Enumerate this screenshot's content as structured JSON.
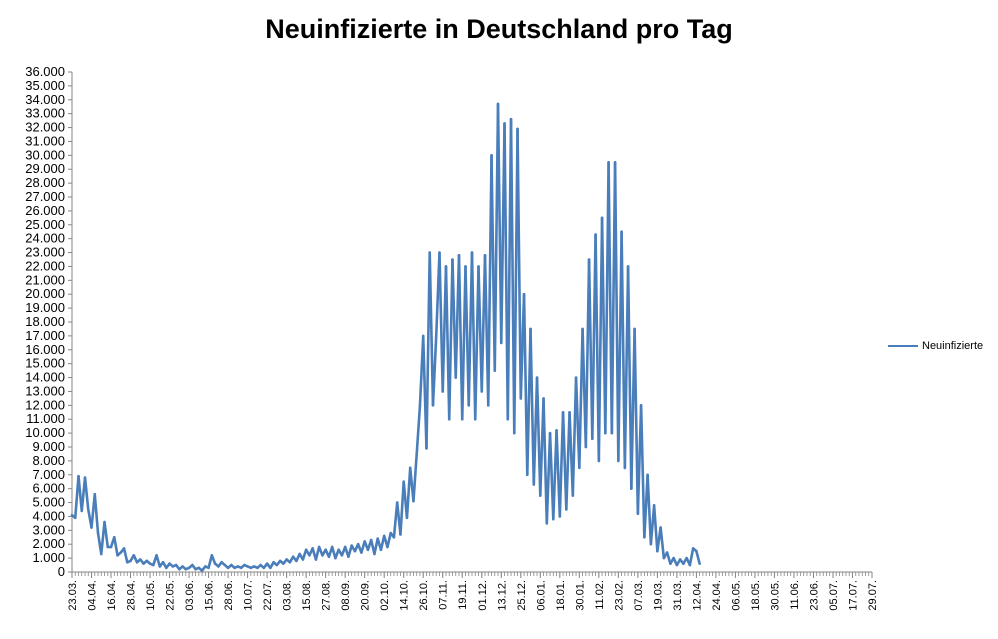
{
  "chart_data": {
    "type": "line",
    "title": "Neuinfizierte in Deutschland pro Tag",
    "series_name": "Neuinfizierte",
    "line_color": "#4a7ebb",
    "ylim": [
      0,
      36000
    ],
    "ytick_labels": [
      "0",
      "1.000",
      "2.000",
      "3.000",
      "4.000",
      "5.000",
      "6.000",
      "7.000",
      "8.000",
      "9.000",
      "10.000",
      "11.000",
      "12.000",
      "13.000",
      "14.000",
      "15.000",
      "16.000",
      "17.000",
      "18.000",
      "19.000",
      "20.000",
      "21.000",
      "22.000",
      "23.000",
      "24.000",
      "25.000",
      "26.000",
      "27.000",
      "28.000",
      "29.000",
      "30.000",
      "31.000",
      "32.000",
      "33.000",
      "34.000",
      "35.000",
      "36.000"
    ],
    "xtick_labels": [
      "23.03.",
      "04.04.",
      "16.04.",
      "28.04.",
      "10.05.",
      "22.05.",
      "03.06.",
      "15.06.",
      "28.06.",
      "10.07.",
      "22.07.",
      "03.08.",
      "15.08.",
      "27.08.",
      "08.09.",
      "20.09.",
      "02.10.",
      "14.10.",
      "26.10.",
      "07.11.",
      "19.11.",
      "01.12.",
      "13.12.",
      "25.12.",
      "06.01.",
      "18.01.",
      "30.01.",
      "11.02.",
      "23.02.",
      "07.03.",
      "19.03.",
      "31.03.",
      "12.04.",
      "24.04.",
      "06.05.",
      "18.05.",
      "30.05.",
      "11.06.",
      "23.06.",
      "05.07.",
      "17.07.",
      "29.07."
    ],
    "legend_position": "right",
    "grid": false,
    "x_interval_days": 12,
    "points": [
      [
        "23.03.",
        4100
      ],
      [
        "25.03.",
        3900
      ],
      [
        "27.03.",
        6900
      ],
      [
        "29.03.",
        4400
      ],
      [
        "31.03.",
        6800
      ],
      [
        "02.04.",
        4500
      ],
      [
        "04.04.",
        3200
      ],
      [
        "06.04.",
        5600
      ],
      [
        "08.04.",
        2800
      ],
      [
        "10.04.",
        1300
      ],
      [
        "12.04.",
        3600
      ],
      [
        "14.04.",
        1800
      ],
      [
        "16.04.",
        1800
      ],
      [
        "18.04.",
        2500
      ],
      [
        "20.04.",
        1200
      ],
      [
        "22.04.",
        1400
      ],
      [
        "24.04.",
        1700
      ],
      [
        "26.04.",
        700
      ],
      [
        "28.04.",
        800
      ],
      [
        "30.04.",
        1200
      ],
      [
        "02.05.",
        700
      ],
      [
        "04.05.",
        900
      ],
      [
        "06.05.",
        600
      ],
      [
        "08.05.",
        800
      ],
      [
        "10.05.",
        600
      ],
      [
        "12.05.",
        500
      ],
      [
        "14.05.",
        1200
      ],
      [
        "16.05.",
        400
      ],
      [
        "18.05.",
        700
      ],
      [
        "20.05.",
        300
      ],
      [
        "22.05.",
        600
      ],
      [
        "24.05.",
        400
      ],
      [
        "26.05.",
        500
      ],
      [
        "28.05.",
        200
      ],
      [
        "30.05.",
        400
      ],
      [
        "01.06.",
        200
      ],
      [
        "03.06.",
        300
      ],
      [
        "05.06.",
        500
      ],
      [
        "07.06.",
        200
      ],
      [
        "09.06.",
        300
      ],
      [
        "11.06.",
        100
      ],
      [
        "13.06.",
        400
      ],
      [
        "15.06.",
        300
      ],
      [
        "17.06.",
        1200
      ],
      [
        "19.06.",
        600
      ],
      [
        "21.06.",
        400
      ],
      [
        "23.06.",
        700
      ],
      [
        "25.06.",
        500
      ],
      [
        "27.06.",
        300
      ],
      [
        "28.06.",
        500
      ],
      [
        "30.06.",
        300
      ],
      [
        "02.07.",
        400
      ],
      [
        "04.07.",
        300
      ],
      [
        "06.07.",
        500
      ],
      [
        "08.07.",
        400
      ],
      [
        "10.07.",
        300
      ],
      [
        "12.07.",
        400
      ],
      [
        "14.07.",
        300
      ],
      [
        "16.07.",
        500
      ],
      [
        "18.07.",
        300
      ],
      [
        "20.07.",
        600
      ],
      [
        "22.07.",
        300
      ],
      [
        "24.07.",
        700
      ],
      [
        "26.07.",
        500
      ],
      [
        "28.07.",
        800
      ],
      [
        "30.07.",
        600
      ],
      [
        "01.08.",
        900
      ],
      [
        "03.08.",
        700
      ],
      [
        "05.08.",
        1100
      ],
      [
        "07.08.",
        800
      ],
      [
        "09.08.",
        1300
      ],
      [
        "11.08.",
        900
      ],
      [
        "13.08.",
        1600
      ],
      [
        "15.08.",
        1200
      ],
      [
        "17.08.",
        1700
      ],
      [
        "19.08.",
        900
      ],
      [
        "21.08.",
        1800
      ],
      [
        "23.08.",
        1200
      ],
      [
        "25.08.",
        1600
      ],
      [
        "27.08.",
        1100
      ],
      [
        "29.08.",
        1800
      ],
      [
        "31.08.",
        1000
      ],
      [
        "02.09.",
        1600
      ],
      [
        "04.09.",
        1200
      ],
      [
        "06.09.",
        1800
      ],
      [
        "08.09.",
        1100
      ],
      [
        "10.09.",
        1900
      ],
      [
        "12.09.",
        1500
      ],
      [
        "14.09.",
        2000
      ],
      [
        "16.09.",
        1400
      ],
      [
        "18.09.",
        2200
      ],
      [
        "20.09.",
        1600
      ],
      [
        "22.09.",
        2300
      ],
      [
        "24.09.",
        1300
      ],
      [
        "26.09.",
        2400
      ],
      [
        "28.09.",
        1600
      ],
      [
        "30.09.",
        2600
      ],
      [
        "02.10.",
        1800
      ],
      [
        "04.10.",
        2800
      ],
      [
        "06.10.",
        2500
      ],
      [
        "08.10.",
        5000
      ],
      [
        "10.10.",
        2700
      ],
      [
        "12.10.",
        6500
      ],
      [
        "14.10.",
        3900
      ],
      [
        "16.10.",
        7500
      ],
      [
        "18.10.",
        5100
      ],
      [
        "20.10.",
        8500
      ],
      [
        "22.10.",
        12000
      ],
      [
        "24.10.",
        17000
      ],
      [
        "26.10.",
        8900
      ],
      [
        "28.10.",
        23000
      ],
      [
        "30.10.",
        12000
      ],
      [
        "01.11.",
        17000
      ],
      [
        "03.11.",
        23000
      ],
      [
        "05.11.",
        13000
      ],
      [
        "07.11.",
        22000
      ],
      [
        "09.11.",
        11000
      ],
      [
        "11.11.",
        22500
      ],
      [
        "13.11.",
        14000
      ],
      [
        "15.11.",
        22800
      ],
      [
        "17.11.",
        11000
      ],
      [
        "19.11.",
        22000
      ],
      [
        "21.11.",
        12000
      ],
      [
        "23.11.",
        23000
      ],
      [
        "25.11.",
        11000
      ],
      [
        "27.11.",
        22000
      ],
      [
        "29.11.",
        13000
      ],
      [
        "01.12.",
        22800
      ],
      [
        "03.12.",
        12000
      ],
      [
        "05.12.",
        30000
      ],
      [
        "07.12.",
        14500
      ],
      [
        "09.12.",
        33700
      ],
      [
        "11.12.",
        16500
      ],
      [
        "13.12.",
        32300
      ],
      [
        "15.12.",
        11000
      ],
      [
        "17.12.",
        32600
      ],
      [
        "19.12.",
        10000
      ],
      [
        "21.12.",
        31900
      ],
      [
        "23.12.",
        12500
      ],
      [
        "25.12.",
        20000
      ],
      [
        "27.12.",
        7000
      ],
      [
        "29.12.",
        17500
      ],
      [
        "31.12.",
        6300
      ],
      [
        "02.01.",
        14000
      ],
      [
        "04.01.",
        5500
      ],
      [
        "06.01.",
        12500
      ],
      [
        "08.01.",
        3500
      ],
      [
        "10.01.",
        10000
      ],
      [
        "12.01.",
        3800
      ],
      [
        "14.01.",
        10200
      ],
      [
        "16.01.",
        4000
      ],
      [
        "18.01.",
        11500
      ],
      [
        "20.01.",
        4500
      ],
      [
        "22.01.",
        11500
      ],
      [
        "24.01.",
        5500
      ],
      [
        "26.01.",
        14000
      ],
      [
        "28.01.",
        7500
      ],
      [
        "30.01.",
        17500
      ],
      [
        "01.02.",
        9000
      ],
      [
        "03.02.",
        22500
      ],
      [
        "05.02.",
        9600
      ],
      [
        "07.02.",
        24300
      ],
      [
        "09.02.",
        8000
      ],
      [
        "11.02.",
        25500
      ],
      [
        "13.02.",
        10000
      ],
      [
        "15.02.",
        29500
      ],
      [
        "17.02.",
        10000
      ],
      [
        "19.02.",
        29500
      ],
      [
        "21.02.",
        8000
      ],
      [
        "23.02.",
        24500
      ],
      [
        "25.02.",
        7500
      ],
      [
        "27.02.",
        22000
      ],
      [
        "01.03.",
        6000
      ],
      [
        "03.03.",
        17500
      ],
      [
        "05.03.",
        4200
      ],
      [
        "07.03.",
        12000
      ],
      [
        "09.03.",
        2500
      ],
      [
        "11.03.",
        7000
      ],
      [
        "13.03.",
        2000
      ],
      [
        "15.03.",
        4800
      ],
      [
        "17.03.",
        1500
      ],
      [
        "19.03.",
        3200
      ],
      [
        "21.03.",
        1000
      ],
      [
        "23.03.",
        1400
      ],
      [
        "25.03.",
        600
      ],
      [
        "27.03.",
        1000
      ],
      [
        "29.03.",
        500
      ],
      [
        "31.03.",
        900
      ],
      [
        "02.04.",
        600
      ],
      [
        "04.04.",
        1000
      ],
      [
        "06.04.",
        500
      ],
      [
        "08.04.",
        1700
      ],
      [
        "10.04.",
        1500
      ],
      [
        "12.04.",
        600
      ]
    ]
  }
}
